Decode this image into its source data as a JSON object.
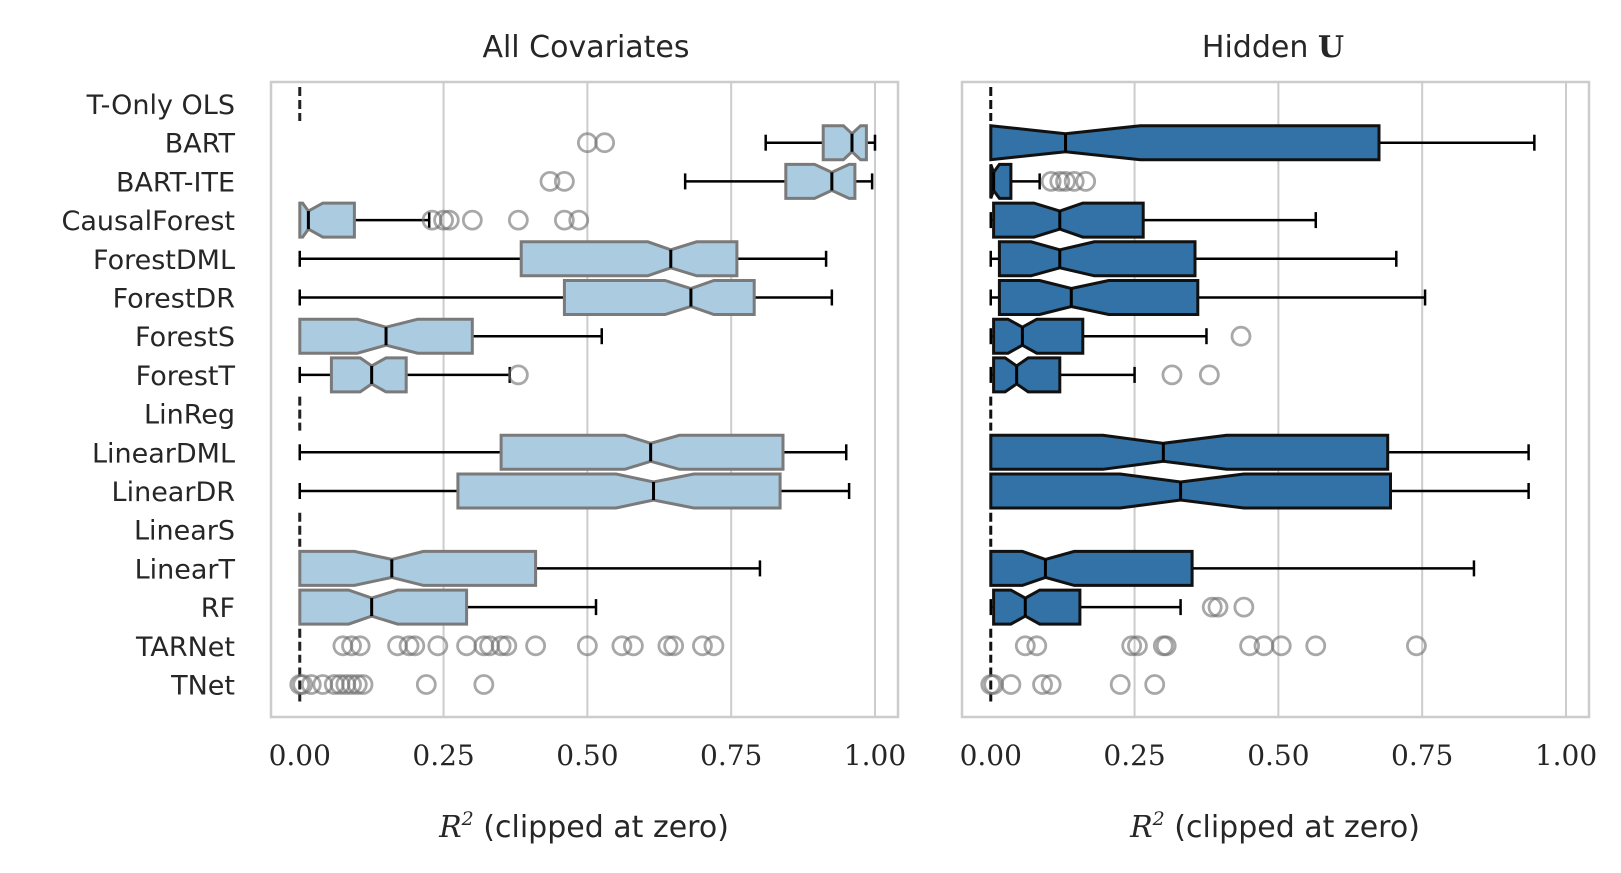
{
  "chart_data": [
    {
      "type": "boxplot",
      "title": "All Covariates",
      "xlabel_var": "R",
      "xlabel_sup": "2",
      "xlabel_rest": " (clipped at zero)",
      "xlim": [
        -0.05,
        1.04
      ],
      "xticks": [
        0,
        0.25,
        0.5,
        0.75,
        1.0
      ],
      "xtick_labels": [
        "0.00",
        "0.25",
        "0.50",
        "0.75",
        "1.00"
      ],
      "box_color": "#abcbe0",
      "edge_color": "#7a7a7a",
      "categories": [
        "T-Only OLS",
        "BART",
        "BART-ITE",
        "CausalForest",
        "ForestDML",
        "ForestDR",
        "ForestS",
        "ForestT",
        "LinReg",
        "LinearDML",
        "LinearDR",
        "LinearS",
        "LinearT",
        "RF",
        "TARNet",
        "TNet"
      ],
      "boxes": [
        {
          "median": 0,
          "q1": 0,
          "q3": 0,
          "wlo": 0,
          "whi": 0,
          "nlo": 0,
          "nhi": 0,
          "fliers": []
        },
        {
          "median": 0.96,
          "q1": 0.91,
          "q3": 0.985,
          "wlo": 0.81,
          "whi": 1.0,
          "nlo": 0.945,
          "nhi": 0.975,
          "fliers": [
            0.5,
            0.53
          ]
        },
        {
          "median": 0.925,
          "q1": 0.845,
          "q3": 0.965,
          "wlo": 0.67,
          "whi": 0.995,
          "nlo": 0.895,
          "nhi": 0.955,
          "fliers": [
            0.435,
            0.46
          ]
        },
        {
          "median": 0.015,
          "q1": 0.0,
          "q3": 0.095,
          "wlo": 0.0,
          "whi": 0.225,
          "nlo": 0.005,
          "nhi": 0.04,
          "fliers": [
            0.23,
            0.25,
            0.26,
            0.3,
            0.38,
            0.46,
            0.485
          ]
        },
        {
          "median": 0.645,
          "q1": 0.385,
          "q3": 0.76,
          "wlo": 0.0,
          "whi": 0.915,
          "nlo": 0.605,
          "nhi": 0.69,
          "fliers": []
        },
        {
          "median": 0.68,
          "q1": 0.46,
          "q3": 0.79,
          "wlo": 0.0,
          "whi": 0.925,
          "nlo": 0.635,
          "nhi": 0.72,
          "fliers": []
        },
        {
          "median": 0.15,
          "q1": 0.0,
          "q3": 0.3,
          "wlo": 0.0,
          "whi": 0.525,
          "nlo": 0.1,
          "nhi": 0.205,
          "fliers": []
        },
        {
          "median": 0.125,
          "q1": 0.055,
          "q3": 0.185,
          "wlo": 0.0,
          "whi": 0.365,
          "nlo": 0.105,
          "nhi": 0.15,
          "fliers": [
            0.38
          ]
        },
        {
          "median": 0,
          "q1": 0,
          "q3": 0,
          "wlo": 0,
          "whi": 0,
          "nlo": 0,
          "nhi": 0,
          "fliers": []
        },
        {
          "median": 0.61,
          "q1": 0.35,
          "q3": 0.84,
          "wlo": 0.0,
          "whi": 0.95,
          "nlo": 0.565,
          "nhi": 0.66,
          "fliers": []
        },
        {
          "median": 0.615,
          "q1": 0.275,
          "q3": 0.835,
          "wlo": 0.0,
          "whi": 0.955,
          "nlo": 0.55,
          "nhi": 0.685,
          "fliers": []
        },
        {
          "median": 0,
          "q1": 0,
          "q3": 0,
          "wlo": 0,
          "whi": 0,
          "nlo": 0,
          "nhi": 0,
          "fliers": []
        },
        {
          "median": 0.16,
          "q1": 0.0,
          "q3": 0.41,
          "wlo": 0.0,
          "whi": 0.8,
          "nlo": 0.095,
          "nhi": 0.215,
          "fliers": []
        },
        {
          "median": 0.125,
          "q1": 0.0,
          "q3": 0.29,
          "wlo": 0.0,
          "whi": 0.515,
          "nlo": 0.085,
          "nhi": 0.17,
          "fliers": []
        },
        {
          "median": 0,
          "q1": 0,
          "q3": 0,
          "wlo": 0,
          "whi": 0,
          "nlo": 0,
          "nhi": 0,
          "fliers": [
            0.075,
            0.09,
            0.105,
            0.17,
            0.19,
            0.2,
            0.24,
            0.29,
            0.32,
            0.33,
            0.35,
            0.36,
            0.41,
            0.5,
            0.56,
            0.58,
            0.64,
            0.65,
            0.7,
            0.72
          ]
        },
        {
          "median": 0,
          "q1": 0,
          "q3": 0,
          "wlo": 0,
          "whi": 0,
          "nlo": 0,
          "nhi": 0,
          "fliers": [
            0.0,
            0.005,
            0.02,
            0.04,
            0.06,
            0.07,
            0.08,
            0.09,
            0.1,
            0.11,
            0.22,
            0.32
          ]
        }
      ]
    },
    {
      "type": "boxplot",
      "title": "Hidden",
      "title_bold": "U",
      "xlabel_var": "R",
      "xlabel_sup": "2",
      "xlabel_rest": " (clipped at zero)",
      "xlim": [
        -0.05,
        1.04
      ],
      "xticks": [
        0,
        0.25,
        0.5,
        0.75,
        1.0
      ],
      "xtick_labels": [
        "0.00",
        "0.25",
        "0.50",
        "0.75",
        "1.00"
      ],
      "box_color": "#3272a6",
      "edge_color": "#111111",
      "categories": [
        "T-Only OLS",
        "BART",
        "BART-ITE",
        "CausalForest",
        "ForestDML",
        "ForestDR",
        "ForestS",
        "ForestT",
        "LinReg",
        "LinearDML",
        "LinearDR",
        "LinearS",
        "LinearT",
        "RF",
        "TARNet",
        "TNet"
      ],
      "boxes": [
        {
          "median": 0,
          "q1": 0,
          "q3": 0,
          "wlo": 0,
          "whi": 0,
          "nlo": 0,
          "nhi": 0,
          "fliers": []
        },
        {
          "median": 0.13,
          "q1": 0.0,
          "q3": 0.675,
          "wlo": 0.0,
          "whi": 0.945,
          "nlo": 0.0,
          "nhi": 0.26,
          "fliers": []
        },
        {
          "median": 0.005,
          "q1": 0.0,
          "q3": 0.035,
          "wlo": 0.0,
          "whi": 0.085,
          "nlo": 0.0,
          "nhi": 0.015,
          "fliers": [
            0.105,
            0.12,
            0.13,
            0.145,
            0.165
          ]
        },
        {
          "median": 0.12,
          "q1": 0.005,
          "q3": 0.265,
          "wlo": 0.0,
          "whi": 0.565,
          "nlo": 0.075,
          "nhi": 0.16,
          "fliers": []
        },
        {
          "median": 0.12,
          "q1": 0.015,
          "q3": 0.355,
          "wlo": 0.0,
          "whi": 0.705,
          "nlo": 0.07,
          "nhi": 0.18,
          "fliers": []
        },
        {
          "median": 0.14,
          "q1": 0.015,
          "q3": 0.36,
          "wlo": 0.0,
          "whi": 0.755,
          "nlo": 0.085,
          "nhi": 0.205,
          "fliers": []
        },
        {
          "median": 0.055,
          "q1": 0.005,
          "q3": 0.16,
          "wlo": 0.0,
          "whi": 0.375,
          "nlo": 0.03,
          "nhi": 0.08,
          "fliers": [
            0.435
          ]
        },
        {
          "median": 0.045,
          "q1": 0.005,
          "q3": 0.12,
          "wlo": 0.0,
          "whi": 0.25,
          "nlo": 0.025,
          "nhi": 0.065,
          "fliers": [
            0.315,
            0.38
          ]
        },
        {
          "median": 0,
          "q1": 0,
          "q3": 0,
          "wlo": 0,
          "whi": 0,
          "nlo": 0,
          "nhi": 0,
          "fliers": []
        },
        {
          "median": 0.3,
          "q1": 0.0,
          "q3": 0.69,
          "wlo": 0.0,
          "whi": 0.935,
          "nlo": 0.195,
          "nhi": 0.41,
          "fliers": []
        },
        {
          "median": 0.33,
          "q1": 0.0,
          "q3": 0.695,
          "wlo": 0.0,
          "whi": 0.935,
          "nlo": 0.225,
          "nhi": 0.44,
          "fliers": []
        },
        {
          "median": 0,
          "q1": 0,
          "q3": 0,
          "wlo": 0,
          "whi": 0,
          "nlo": 0,
          "nhi": 0,
          "fliers": []
        },
        {
          "median": 0.095,
          "q1": 0.0,
          "q3": 0.35,
          "wlo": 0.0,
          "whi": 0.84,
          "nlo": 0.055,
          "nhi": 0.145,
          "fliers": []
        },
        {
          "median": 0.06,
          "q1": 0.005,
          "q3": 0.155,
          "wlo": 0.0,
          "whi": 0.33,
          "nlo": 0.035,
          "nhi": 0.085,
          "fliers": [
            0.385,
            0.395,
            0.44
          ]
        },
        {
          "median": 0,
          "q1": 0,
          "q3": 0,
          "wlo": 0,
          "whi": 0,
          "nlo": 0,
          "nhi": 0,
          "fliers": [
            0.06,
            0.08,
            0.245,
            0.255,
            0.3,
            0.305,
            0.45,
            0.475,
            0.505,
            0.565,
            0.74
          ]
        },
        {
          "median": 0,
          "q1": 0,
          "q3": 0,
          "wlo": 0,
          "whi": 0,
          "nlo": 0,
          "nhi": 0,
          "fliers": [
            0.0,
            0.005,
            0.035,
            0.09,
            0.105,
            0.225,
            0.285
          ]
        }
      ]
    }
  ]
}
